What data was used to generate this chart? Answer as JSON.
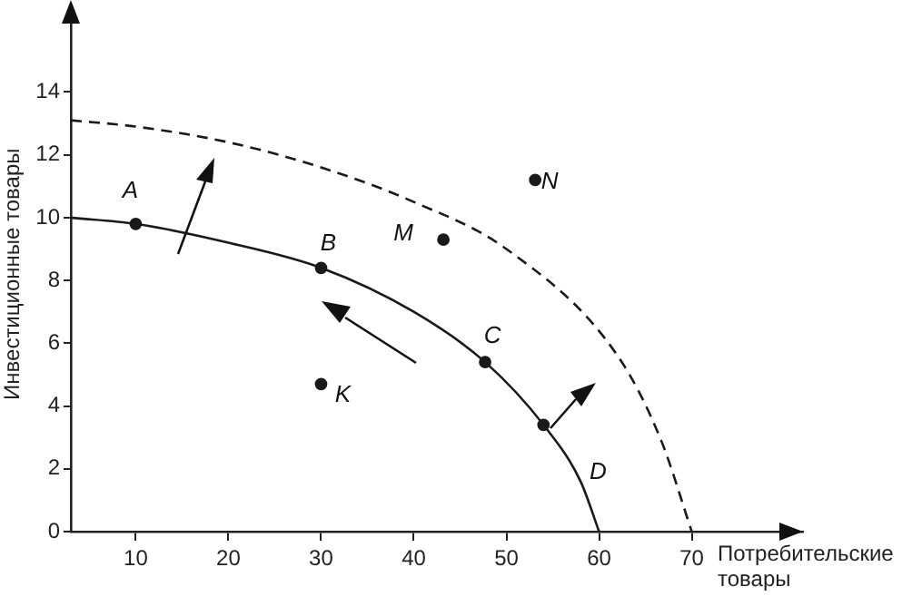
{
  "chart_data": {
    "type": "line",
    "xlabel": "Потребительские товары",
    "ylabel": "Инвестиционные товары",
    "xlim": [
      3,
      82
    ],
    "ylim": [
      0,
      16.4
    ],
    "xticks": [
      10,
      20,
      30,
      40,
      50,
      60,
      70
    ],
    "yticks": [
      0,
      2,
      4,
      6,
      8,
      10,
      12,
      14
    ],
    "grid": false,
    "legend": false,
    "marker": "none",
    "series": [
      {
        "color": "#1a1a1a",
        "line_style": "solid",
        "x": [
          3,
          10,
          20,
          30,
          40,
          47.7,
          54,
          58,
          60
        ],
        "values": [
          10,
          9.8,
          9.2,
          8.4,
          7.0,
          5.4,
          3.4,
          1.6,
          0
        ]
      },
      {
        "color": "#1a1a1a",
        "line_style": "dashed",
        "x": [
          3,
          10,
          20,
          30,
          40,
          50,
          62,
          66.7,
          70
        ],
        "values": [
          13.1,
          12.9,
          12.4,
          11.6,
          10.5,
          9.0,
          5.6,
          2.9,
          0
        ]
      },
      {
        "type": "scatter",
        "color": "#1a1a1a",
        "marker": "circle",
        "x": [
          10,
          30,
          47.7,
          54,
          30,
          43.2,
          53.1
        ],
        "values": [
          9.8,
          8.4,
          5.4,
          3.4,
          4.7,
          9.3,
          11.2
        ]
      }
    ],
    "annotations": [
      {
        "text": "A",
        "x": 10,
        "y": 9.8
      },
      {
        "text": "B",
        "x": 30,
        "y": 8.4
      },
      {
        "text": "C",
        "x": 47.7,
        "y": 5.4
      },
      {
        "text": "D",
        "x": 54,
        "y": 3.4
      },
      {
        "text": "K",
        "x": 30,
        "y": 4.7
      },
      {
        "text": "M",
        "x": 43.2,
        "y": 9.3
      },
      {
        "text": "N",
        "x": 53.1,
        "y": 11.2
      }
    ]
  }
}
